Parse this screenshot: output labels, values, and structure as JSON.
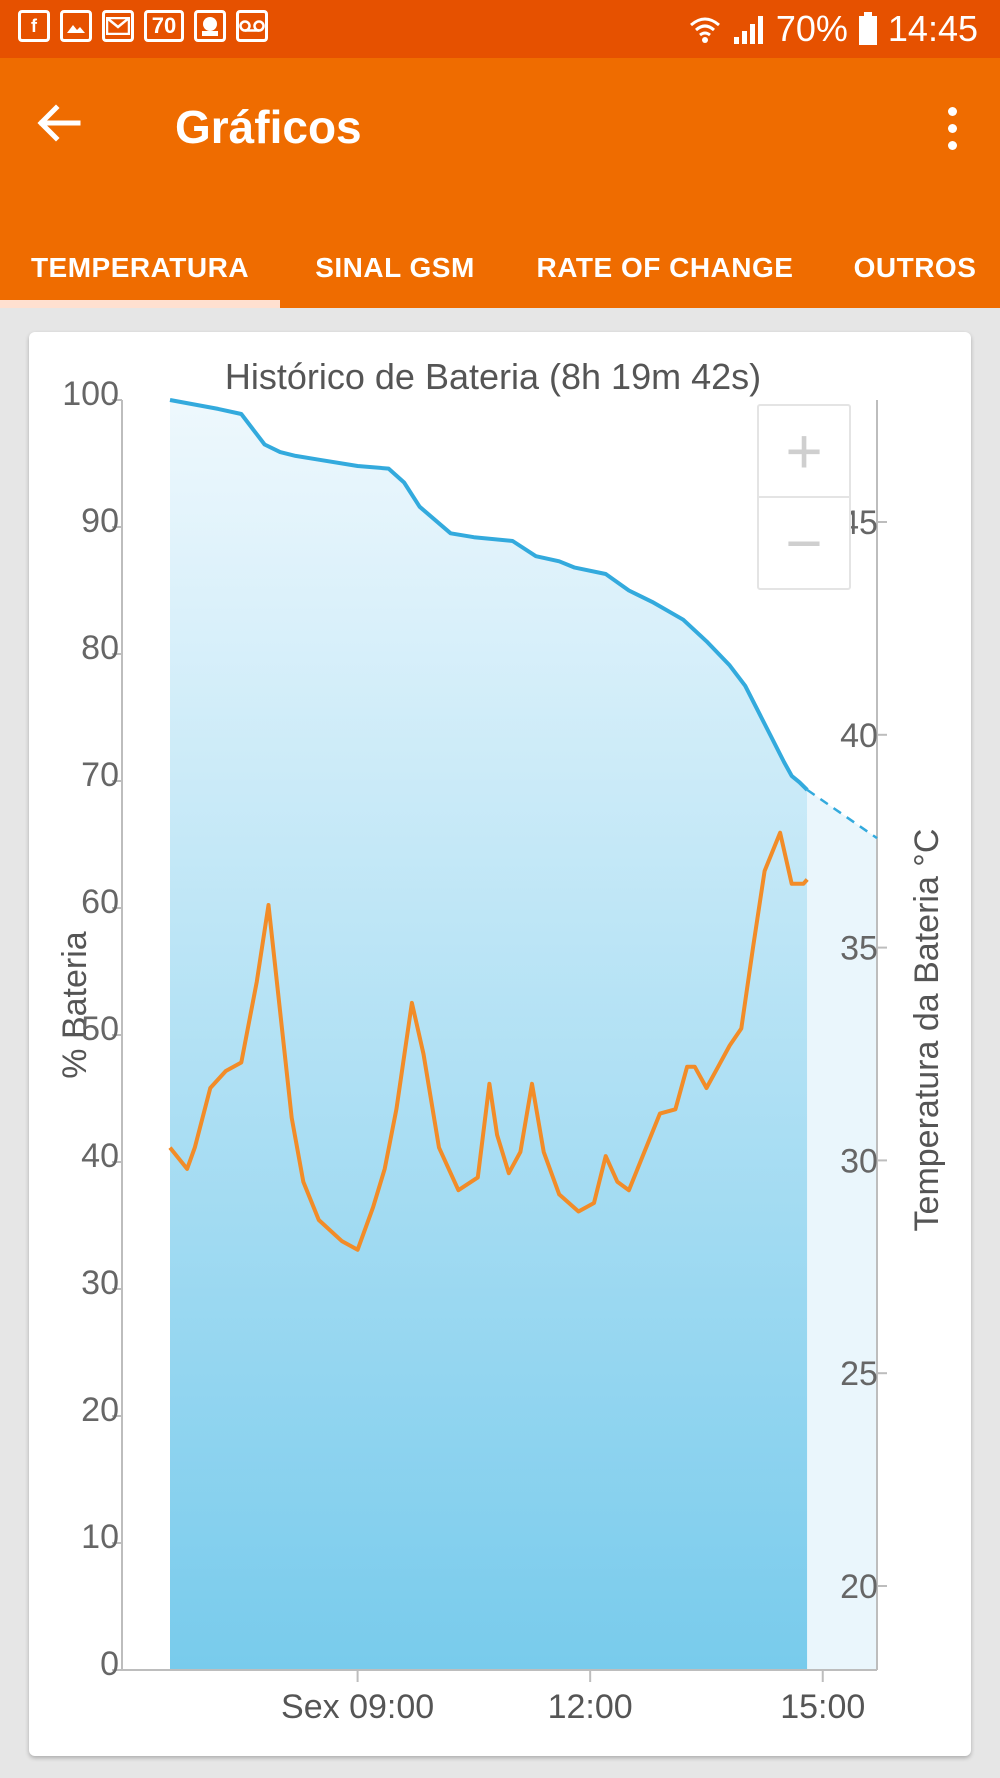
{
  "status_bar": {
    "battery_pct": "70%",
    "time": "14:45",
    "notif_badge": "70",
    "icons": [
      "facebook-icon",
      "gallery-icon",
      "mail-icon",
      "badge-70-icon",
      "app-icon",
      "voicemail-icon",
      "wifi-icon",
      "signal-icon",
      "battery-icon"
    ]
  },
  "app_bar": {
    "title": "Gráficos",
    "back_icon": "arrow-back-icon",
    "menu_icon": "more-vert-icon"
  },
  "tabs": [
    {
      "label": "TEMPERATURA",
      "active": true
    },
    {
      "label": "SINAL GSM",
      "active": false
    },
    {
      "label": "RATE OF CHANGE",
      "active": false
    },
    {
      "label": "OUTROS",
      "active": false
    }
  ],
  "zoom": {
    "plus": "+",
    "minus": "−"
  },
  "colors": {
    "status_bar": "#e65100",
    "app_bar": "#ef6c00",
    "battery_line": "#33aadd",
    "temperature_line": "#f28c28"
  },
  "chart_data": {
    "type": "line",
    "title": "Histórico de Bateria (8h 19m 42s)",
    "ylabel": "% Bateria",
    "y2label": "Temperatura da Bateria °C",
    "ylim": [
      0,
      100
    ],
    "y2lim": [
      18,
      48
    ],
    "yticks": [
      "0",
      "10",
      "20",
      "30",
      "40",
      "50",
      "60",
      "70",
      "80",
      "90",
      "100"
    ],
    "y2ticks": [
      "20",
      "25",
      "30",
      "35",
      "40",
      "45"
    ],
    "xticks": [
      {
        "label": "Sex 09:00",
        "t": 9.0
      },
      {
        "label": "12:00",
        "t": 12.0
      },
      {
        "label": "15:00",
        "t": 15.0
      }
    ],
    "xlim": [
      6.5,
      15.7
    ],
    "series": [
      {
        "axis": "left",
        "t": [
          6.58,
          7.2,
          7.5,
          7.8,
          8.0,
          8.2,
          8.5,
          9.0,
          9.4,
          9.6,
          9.8,
          10.2,
          10.5,
          11.0,
          11.3,
          11.6,
          11.8,
          12.2,
          12.5,
          12.8,
          13.2,
          13.5,
          13.8,
          14.0,
          14.3,
          14.5,
          14.6,
          14.7,
          14.8
        ],
        "values": [
          100,
          99.3,
          98.9,
          96.5,
          95.9,
          95.6,
          95.3,
          94.8,
          94.6,
          93.5,
          91.6,
          89.5,
          89.2,
          88.9,
          87.7,
          87.3,
          86.8,
          86.3,
          85.0,
          84.1,
          82.7,
          81.0,
          79.1,
          77.5,
          73.9,
          71.5,
          70.4,
          69.9,
          69.3
        ]
      },
      {
        "axis": "left",
        "projected": true,
        "t": [
          14.8,
          15.7
        ],
        "values": [
          69.3,
          65.5
        ]
      },
      {
        "axis": "right",
        "t": [
          6.58,
          6.8,
          6.9,
          7.1,
          7.3,
          7.5,
          7.7,
          7.85,
          8.0,
          8.15,
          8.3,
          8.5,
          8.8,
          9.0,
          9.2,
          9.35,
          9.5,
          9.7,
          9.85,
          10.05,
          10.3,
          10.55,
          10.7,
          10.8,
          10.95,
          11.1,
          11.25,
          11.4,
          11.6,
          11.85,
          12.05,
          12.2,
          12.35,
          12.5,
          12.7,
          12.9,
          13.1,
          13.25,
          13.35,
          13.5,
          13.65,
          13.8,
          13.95,
          14.1,
          14.25,
          14.45,
          14.6,
          14.75,
          14.8
        ],
        "values": [
          30.3,
          29.8,
          30.3,
          31.7,
          32.1,
          32.3,
          34.2,
          36.0,
          33.5,
          31.0,
          29.5,
          28.6,
          28.1,
          27.9,
          28.9,
          29.8,
          31.2,
          33.7,
          32.5,
          30.3,
          29.3,
          29.6,
          31.8,
          30.6,
          29.7,
          30.2,
          31.8,
          30.2,
          29.2,
          28.8,
          29.0,
          30.1,
          29.5,
          29.3,
          30.2,
          31.1,
          31.2,
          32.2,
          32.2,
          31.7,
          32.2,
          32.7,
          33.1,
          35.0,
          36.8,
          37.7,
          36.5,
          36.5,
          36.6
        ]
      }
    ]
  }
}
